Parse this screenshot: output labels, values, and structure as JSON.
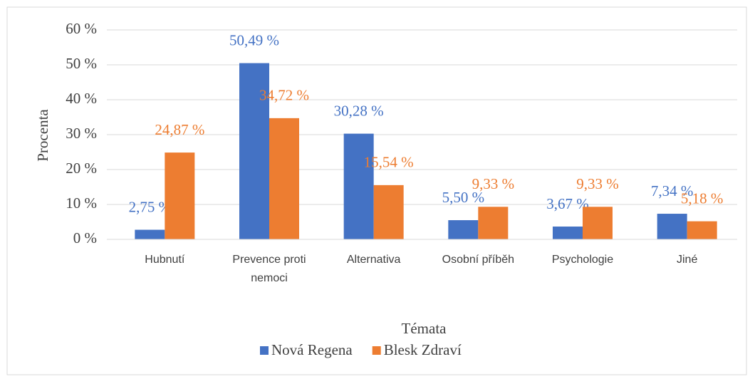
{
  "chart_data": {
    "type": "bar",
    "x_label": "Témata",
    "y_label": "Procenta",
    "categories": [
      "Hubnutí",
      "Prevence proti nemoci",
      "Alternativa",
      "Osobní příběh",
      "Psychologie",
      "Jiné"
    ],
    "series": [
      {
        "name": "Nová Regena",
        "color": "#4472c4",
        "values": [
          2.75,
          50.49,
          30.28,
          5.5,
          3.67,
          7.34
        ],
        "value_labels": [
          "2,75 %",
          "50,49 %",
          "30,28 %",
          "5,50 %",
          "3,67 %",
          "7,34 %"
        ]
      },
      {
        "name": "Blesk Zdraví",
        "color": "#ed7d31",
        "values": [
          24.87,
          34.72,
          15.54,
          9.33,
          9.33,
          5.18
        ],
        "value_labels": [
          "24,87 %",
          "34,72 %",
          "15,54 %",
          "9,33 %",
          "9,33 %",
          "5,18 %"
        ]
      }
    ],
    "ylim": [
      0,
      60
    ],
    "yticks": [
      {
        "value": 0,
        "label": "0 %"
      },
      {
        "value": 10,
        "label": "10 %"
      },
      {
        "value": 20,
        "label": "20 %"
      },
      {
        "value": 30,
        "label": "30 %"
      },
      {
        "value": 40,
        "label": "40 %"
      },
      {
        "value": 50,
        "label": "50 %"
      },
      {
        "value": 60,
        "label": "60 %"
      }
    ],
    "grid": true,
    "legend": "bottom"
  }
}
